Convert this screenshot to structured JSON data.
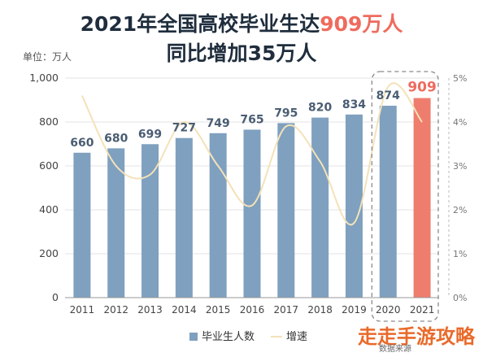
{
  "title": {
    "line1_prefix": "2021年全国高校毕业生达",
    "line1_highlight": "909万人",
    "line2": "同比增加35万人"
  },
  "unit_label": "单位：万人",
  "legend": {
    "bars": "毕业生人数",
    "line": "增速"
  },
  "watermark": {
    "main": "走走手游攻略",
    "sub": "数据来源"
  },
  "colors": {
    "bar": "#7fa0bf",
    "bar_highlight": "#ef7d6e",
    "line": "#f3e2b8",
    "highlight_text": "#ef6b5e"
  },
  "chart_data": {
    "type": "bar",
    "categories": [
      "2011",
      "2012",
      "2013",
      "2014",
      "2015",
      "2016",
      "2017",
      "2018",
      "2019",
      "2020",
      "2021"
    ],
    "series": [
      {
        "name": "毕业生人数",
        "type": "bar",
        "axis": "left",
        "values": [
          660,
          680,
          699,
          727,
          749,
          765,
          795,
          820,
          834,
          874,
          909
        ]
      },
      {
        "name": "增速",
        "type": "line",
        "axis": "right",
        "unit": "%",
        "values": [
          4.6,
          3.0,
          2.8,
          4.0,
          3.0,
          2.1,
          3.9,
          3.1,
          1.7,
          4.8,
          4.0
        ]
      }
    ],
    "y_left": {
      "min": 0,
      "max": 1000,
      "ticks": [
        0,
        200,
        400,
        600,
        800,
        1000
      ],
      "tick_labels": [
        "0",
        "200",
        "400",
        "600",
        "800",
        "1,000"
      ]
    },
    "y_right": {
      "min": 0,
      "max": 5,
      "ticks": [
        0,
        1,
        2,
        3,
        4,
        5
      ],
      "tick_labels": [
        "0%",
        "1%",
        "2%",
        "3%",
        "4%",
        "5%"
      ]
    },
    "highlight_categories": [
      "2020",
      "2021"
    ],
    "highlight_bar": "2021",
    "grid": true,
    "legend_position": "bottom"
  }
}
